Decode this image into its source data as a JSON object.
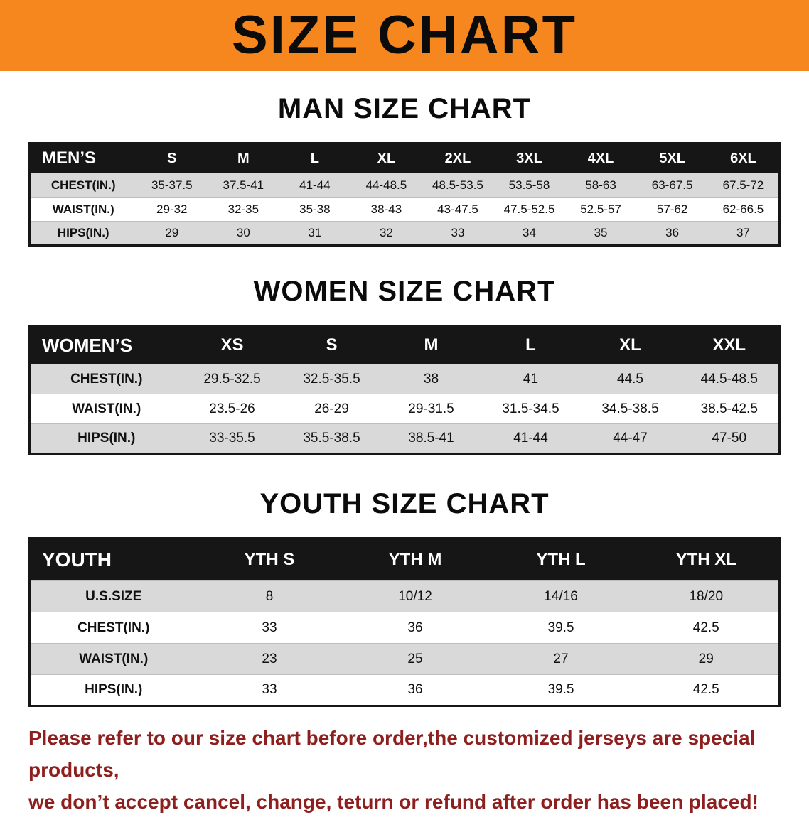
{
  "banner": {
    "title": "SIZE CHART"
  },
  "colors": {
    "banner_orange": "#F5871E",
    "header_black": "#161616",
    "stripe_gray": "#D9D9D9",
    "footer_red": "#8E1F1F"
  },
  "sections": [
    {
      "heading": "MAN SIZE CHART",
      "table": {
        "header_label": "MEN’S",
        "columns": [
          "S",
          "M",
          "L",
          "XL",
          "2XL",
          "3XL",
          "4XL",
          "5XL",
          "6XL"
        ],
        "rows": [
          {
            "label": "CHEST(IN.)",
            "values": [
              "35-37.5",
              "37.5-41",
              "41-44",
              "44-48.5",
              "48.5-53.5",
              "53.5-58",
              "58-63",
              "63-67.5",
              "67.5-72"
            ]
          },
          {
            "label": "WAIST(IN.)",
            "values": [
              "29-32",
              "32-35",
              "35-38",
              "38-43",
              "43-47.5",
              "47.5-52.5",
              "52.5-57",
              "57-62",
              "62-66.5"
            ]
          },
          {
            "label": "HIPS(IN.)",
            "values": [
              "29",
              "30",
              "31",
              "32",
              "33",
              "34",
              "35",
              "36",
              "37"
            ]
          }
        ]
      }
    },
    {
      "heading": "WOMEN SIZE CHART",
      "table": {
        "header_label": "WOMEN’S",
        "columns": [
          "XS",
          "S",
          "M",
          "L",
          "XL",
          "XXL"
        ],
        "rows": [
          {
            "label": "CHEST(IN.)",
            "values": [
              "29.5-32.5",
              "32.5-35.5",
              "38",
              "41",
              "44.5",
              "44.5-48.5"
            ]
          },
          {
            "label": "WAIST(IN.)",
            "values": [
              "23.5-26",
              "26-29",
              "29-31.5",
              "31.5-34.5",
              "34.5-38.5",
              "38.5-42.5"
            ]
          },
          {
            "label": "HIPS(IN.)",
            "values": [
              "33-35.5",
              "35.5-38.5",
              "38.5-41",
              "41-44",
              "44-47",
              "47-50"
            ]
          }
        ]
      }
    },
    {
      "heading": "YOUTH SIZE CHART",
      "table": {
        "header_label": "YOUTH",
        "columns": [
          "YTH S",
          "YTH M",
          "YTH L",
          "YTH XL"
        ],
        "rows": [
          {
            "label": "U.S.SIZE",
            "values": [
              "8",
              "10/12",
              "14/16",
              "18/20"
            ]
          },
          {
            "label": "CHEST(IN.)",
            "values": [
              "33",
              "36",
              "39.5",
              "42.5"
            ]
          },
          {
            "label": "WAIST(IN.)",
            "values": [
              "23",
              "25",
              "27",
              "29"
            ]
          },
          {
            "label": "HIPS(IN.)",
            "values": [
              "33",
              "36",
              "39.5",
              "42.5"
            ]
          }
        ]
      }
    }
  ],
  "footer": {
    "line1": "Please refer to our size chart before order,the customized jerseys are special products,",
    "line2": "we don’t accept cancel, change, teturn or refund after order has been placed!"
  }
}
